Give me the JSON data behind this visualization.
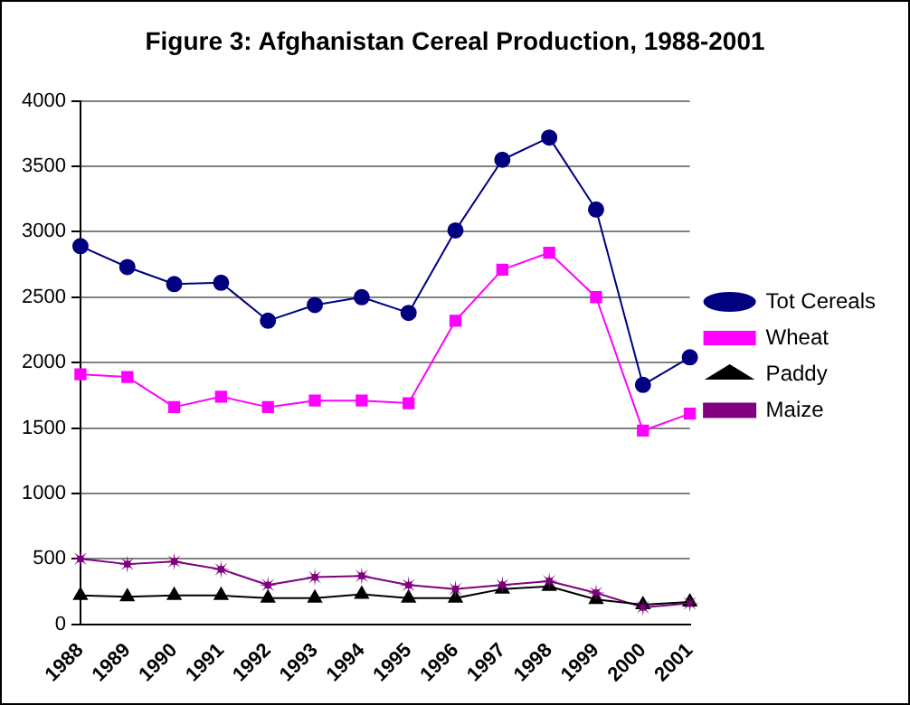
{
  "chart_data": {
    "type": "line",
    "title": "Figure 3: Afghanistan Cereal Production, 1988-2001",
    "categories": [
      "1988",
      "1989",
      "1990",
      "1991",
      "1992",
      "1993",
      "1994",
      "1995",
      "1996",
      "1997",
      "1998",
      "1999",
      "2000",
      "2001"
    ],
    "series": [
      {
        "name": "Tot Cereals",
        "color": "#000080",
        "marker": "circle",
        "values": [
          2890,
          2730,
          2600,
          2610,
          2320,
          2440,
          2500,
          2380,
          3010,
          3550,
          3720,
          3170,
          1830,
          2040
        ]
      },
      {
        "name": "Wheat",
        "color": "#ff00ff",
        "marker": "square",
        "values": [
          1910,
          1890,
          1660,
          1740,
          1660,
          1710,
          1710,
          1690,
          2320,
          2710,
          2840,
          2500,
          1480,
          1610
        ]
      },
      {
        "name": "Paddy",
        "color": "#000000",
        "marker": "triangle",
        "values": [
          220,
          210,
          220,
          220,
          200,
          200,
          230,
          200,
          200,
          270,
          290,
          190,
          150,
          170
        ]
      },
      {
        "name": "Maize",
        "color": "#800080",
        "marker": "star",
        "values": [
          500,
          460,
          480,
          420,
          300,
          360,
          370,
          300,
          270,
          300,
          330,
          240,
          130,
          160
        ]
      }
    ],
    "ylim": [
      0,
      4000
    ],
    "yticks": [
      0,
      500,
      1000,
      1500,
      2000,
      2500,
      3000,
      3500,
      4000
    ],
    "grid": "y",
    "legend": "right"
  }
}
